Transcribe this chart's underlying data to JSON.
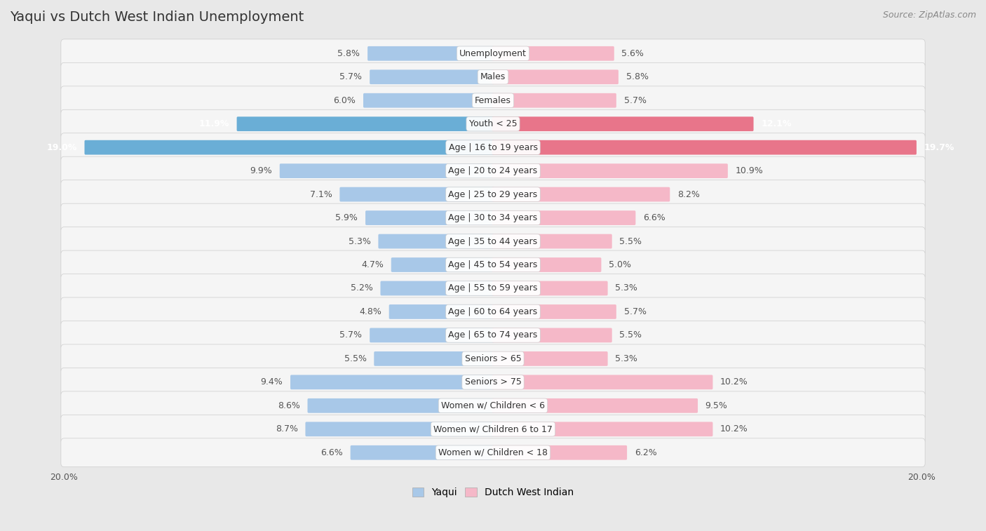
{
  "title": "Yaqui vs Dutch West Indian Unemployment",
  "source": "Source: ZipAtlas.com",
  "categories": [
    "Unemployment",
    "Males",
    "Females",
    "Youth < 25",
    "Age | 16 to 19 years",
    "Age | 20 to 24 years",
    "Age | 25 to 29 years",
    "Age | 30 to 34 years",
    "Age | 35 to 44 years",
    "Age | 45 to 54 years",
    "Age | 55 to 59 years",
    "Age | 60 to 64 years",
    "Age | 65 to 74 years",
    "Seniors > 65",
    "Seniors > 75",
    "Women w/ Children < 6",
    "Women w/ Children 6 to 17",
    "Women w/ Children < 18"
  ],
  "yaqui": [
    5.8,
    5.7,
    6.0,
    11.9,
    19.0,
    9.9,
    7.1,
    5.9,
    5.3,
    4.7,
    5.2,
    4.8,
    5.7,
    5.5,
    9.4,
    8.6,
    8.7,
    6.6
  ],
  "dutch": [
    5.6,
    5.8,
    5.7,
    12.1,
    19.7,
    10.9,
    8.2,
    6.6,
    5.5,
    5.0,
    5.3,
    5.7,
    5.5,
    5.3,
    10.2,
    9.5,
    10.2,
    6.2
  ],
  "yaqui_color_normal": "#a8c8e8",
  "yaqui_color_highlight": "#6aaed6",
  "dutch_color_normal": "#f5b8c8",
  "dutch_color_highlight": "#e8758a",
  "highlight_rows": [
    3,
    4
  ],
  "bg_color": "#e8e8e8",
  "row_bg_color": "#f5f5f5",
  "row_border_color": "#cccccc",
  "text_color_normal": "#555555",
  "text_color_highlight": "#ffffff",
  "label_bg_color": "#ffffff",
  "legend_yaqui": "Yaqui",
  "legend_dutch": "Dutch West Indian",
  "max_val": 20.0,
  "title_fontsize": 14,
  "source_fontsize": 9,
  "label_fontsize": 9,
  "value_fontsize": 9
}
